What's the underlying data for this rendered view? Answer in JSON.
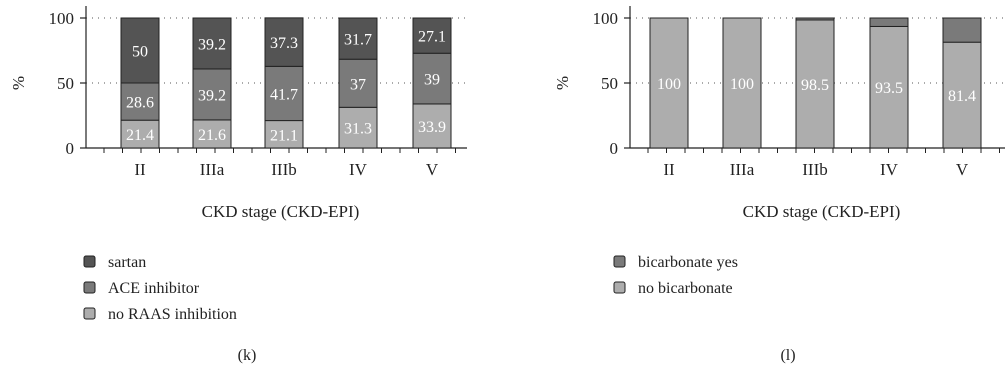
{
  "colors": {
    "dark": "#545454",
    "mid": "#7a7a7a",
    "light": "#adadad",
    "stroke": "#222222"
  },
  "chart_data": [
    {
      "type": "bar",
      "stacked": true,
      "panel_label": "(k)",
      "xlabel": "CKD stage (CKD-EPI)",
      "ylabel": "%",
      "ylim": [
        0,
        100
      ],
      "yticks": [
        "0",
        "50",
        "100"
      ],
      "categories": [
        "II",
        "IIIa",
        "IIIb",
        "IV",
        "V"
      ],
      "grid": "dotted horizontal",
      "series": [
        {
          "name": "no RAAS inhibition",
          "color": "light",
          "values": [
            21.4,
            21.6,
            21.1,
            31.3,
            33.9
          ]
        },
        {
          "name": "ACE inhibitor",
          "color": "mid",
          "values": [
            28.6,
            39.2,
            41.7,
            37,
            39
          ]
        },
        {
          "name": "sartan",
          "color": "dark",
          "values": [
            50,
            39.2,
            37.3,
            31.7,
            27.1
          ]
        }
      ],
      "labels": [
        [
          "21.4",
          "21.6",
          "21.1",
          "31.3",
          "33.9"
        ],
        [
          "28.6",
          "39.2",
          "41.7",
          "37",
          "39"
        ],
        [
          "50",
          "39.2",
          "37.3",
          "31.7",
          "27.1"
        ]
      ],
      "legend_order": [
        "sartan",
        "ACE inhibitor",
        "no RAAS inhibition"
      ]
    },
    {
      "type": "bar",
      "stacked": true,
      "panel_label": "(l)",
      "xlabel": "CKD stage (CKD-EPI)",
      "ylabel": "%",
      "ylim": [
        0,
        100
      ],
      "yticks": [
        "0",
        "50",
        "100"
      ],
      "categories": [
        "II",
        "IIIa",
        "IIIb",
        "IV",
        "V"
      ],
      "grid": "dotted horizontal",
      "series": [
        {
          "name": "no bicarbonate",
          "color": "light",
          "values": [
            100,
            100,
            98.5,
            93.5,
            81.4
          ]
        },
        {
          "name": "bicarbonate yes",
          "color": "mid",
          "values": [
            0,
            0,
            1.5,
            6.5,
            18.6
          ]
        }
      ],
      "labels": [
        [
          "100",
          "100",
          "98.5",
          "93.5",
          "81.4"
        ],
        [
          "",
          "",
          "",
          "",
          ""
        ]
      ],
      "legend_order": [
        "bicarbonate yes",
        "no bicarbonate"
      ]
    }
  ]
}
